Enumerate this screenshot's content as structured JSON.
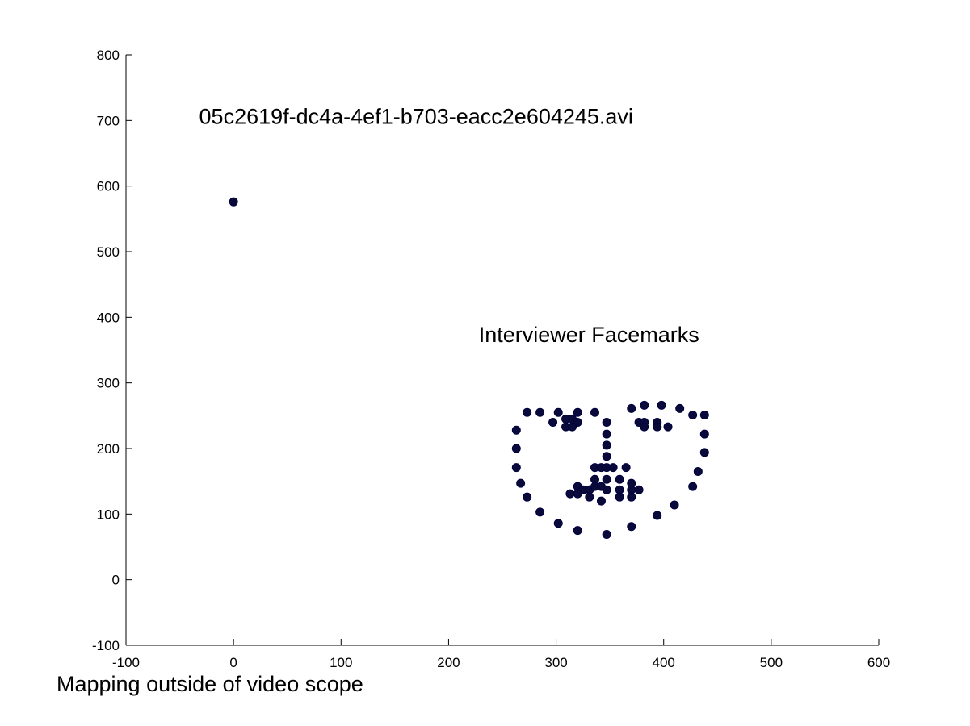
{
  "chart_data": {
    "type": "scatter",
    "title": "",
    "xlabel": "",
    "ylabel": "",
    "xlim": [
      -100,
      600
    ],
    "ylim": [
      -100,
      800
    ],
    "xticks": [
      -100,
      0,
      100,
      200,
      300,
      400,
      500,
      600
    ],
    "yticks": [
      -100,
      0,
      100,
      200,
      300,
      400,
      500,
      600,
      700,
      800
    ],
    "grid": false,
    "legend": "none",
    "marker_color": "#0a0a3a",
    "annotations": [
      {
        "text": "05c2619f-dc4a-4ef1-b703-eacc2e604245.avi",
        "x": -32,
        "y": 695
      },
      {
        "text": "Interviewer Facemarks",
        "x": 228,
        "y": 362
      }
    ],
    "footer_text": "Mapping outside of video scope",
    "series": [
      {
        "points": [
          [
            0,
            576
          ],
          [
            263,
            228
          ],
          [
            263,
            200
          ],
          [
            263,
            171
          ],
          [
            267,
            147
          ],
          [
            273,
            126
          ],
          [
            285,
            103
          ],
          [
            302,
            86
          ],
          [
            320,
            75
          ],
          [
            347,
            69
          ],
          [
            370,
            81
          ],
          [
            394,
            98
          ],
          [
            410,
            114
          ],
          [
            427,
            142
          ],
          [
            432,
            165
          ],
          [
            438,
            194
          ],
          [
            438,
            222
          ],
          [
            438,
            251
          ],
          [
            273,
            255
          ],
          [
            285,
            255
          ],
          [
            302,
            255
          ],
          [
            320,
            255
          ],
          [
            336,
            255
          ],
          [
            370,
            261
          ],
          [
            382,
            266
          ],
          [
            398,
            266
          ],
          [
            415,
            261
          ],
          [
            427,
            251
          ],
          [
            297,
            240
          ],
          [
            309,
            245
          ],
          [
            315,
            245
          ],
          [
            320,
            240
          ],
          [
            309,
            233
          ],
          [
            315,
            233
          ],
          [
            377,
            240
          ],
          [
            382,
            240
          ],
          [
            394,
            240
          ],
          [
            404,
            233
          ],
          [
            382,
            233
          ],
          [
            394,
            233
          ],
          [
            347,
            240
          ],
          [
            347,
            222
          ],
          [
            347,
            205
          ],
          [
            347,
            188
          ],
          [
            336,
            171
          ],
          [
            342,
            171
          ],
          [
            347,
            171
          ],
          [
            353,
            171
          ],
          [
            365,
            171
          ],
          [
            336,
            153
          ],
          [
            347,
            153
          ],
          [
            359,
            153
          ],
          [
            370,
            147
          ],
          [
            320,
            142
          ],
          [
            325,
            137
          ],
          [
            331,
            137
          ],
          [
            336,
            142
          ],
          [
            342,
            142
          ],
          [
            347,
            137
          ],
          [
            359,
            137
          ],
          [
            370,
            137
          ],
          [
            377,
            137
          ],
          [
            313,
            131
          ],
          [
            320,
            131
          ],
          [
            331,
            126
          ],
          [
            342,
            120
          ],
          [
            359,
            126
          ],
          [
            370,
            126
          ]
        ]
      }
    ]
  }
}
